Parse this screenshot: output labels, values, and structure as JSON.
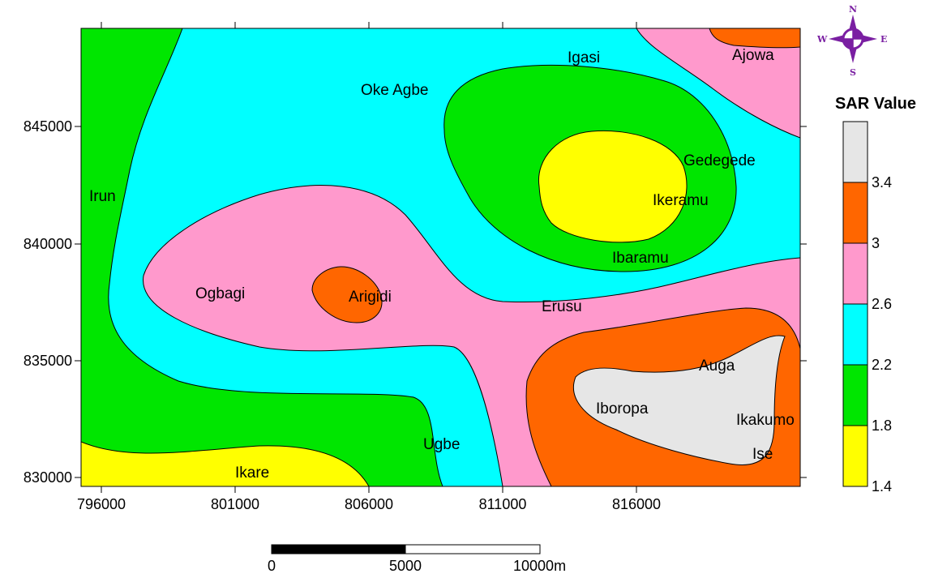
{
  "map": {
    "x_ticks": [
      "796000",
      "801000",
      "806000",
      "811000",
      "816000"
    ],
    "y_ticks": [
      "845000",
      "840000",
      "835000",
      "830000"
    ],
    "places": [
      "Igasi",
      "Ajowa",
      "Oke Agbe",
      "Gedegede",
      "Irun",
      "Ikeramu",
      "Ibaramu",
      "Ogbagi",
      "Arigidi",
      "Erusu",
      "Auga",
      "Iboropa",
      "Ikakumo",
      "Ugbe",
      "Ise",
      "Ikare"
    ],
    "zone_colors": {
      "z1": "#ffff00",
      "z2": "#00e600",
      "z3": "#00ffff",
      "z4": "#ff99cc",
      "z5": "#ff6600",
      "z6": "#e6e6e6"
    }
  },
  "legend": {
    "title": "SAR Value",
    "classes": [
      {
        "label": "1.4",
        "color": "#ffff00"
      },
      {
        "label": "1.8",
        "color": "#00e600"
      },
      {
        "label": "2.2",
        "color": "#00ffff"
      },
      {
        "label": "2.6",
        "color": "#ff99cc"
      },
      {
        "label": "3",
        "color": "#ff6600"
      },
      {
        "label": "3.4",
        "color": "#e6e6e6"
      }
    ]
  },
  "scale_bar": {
    "labels": [
      "0",
      "5000",
      "10000"
    ],
    "unit": "m"
  },
  "compass": {
    "n": "N",
    "s": "S",
    "e": "E",
    "w": "W",
    "color": "#7a1fa2"
  }
}
